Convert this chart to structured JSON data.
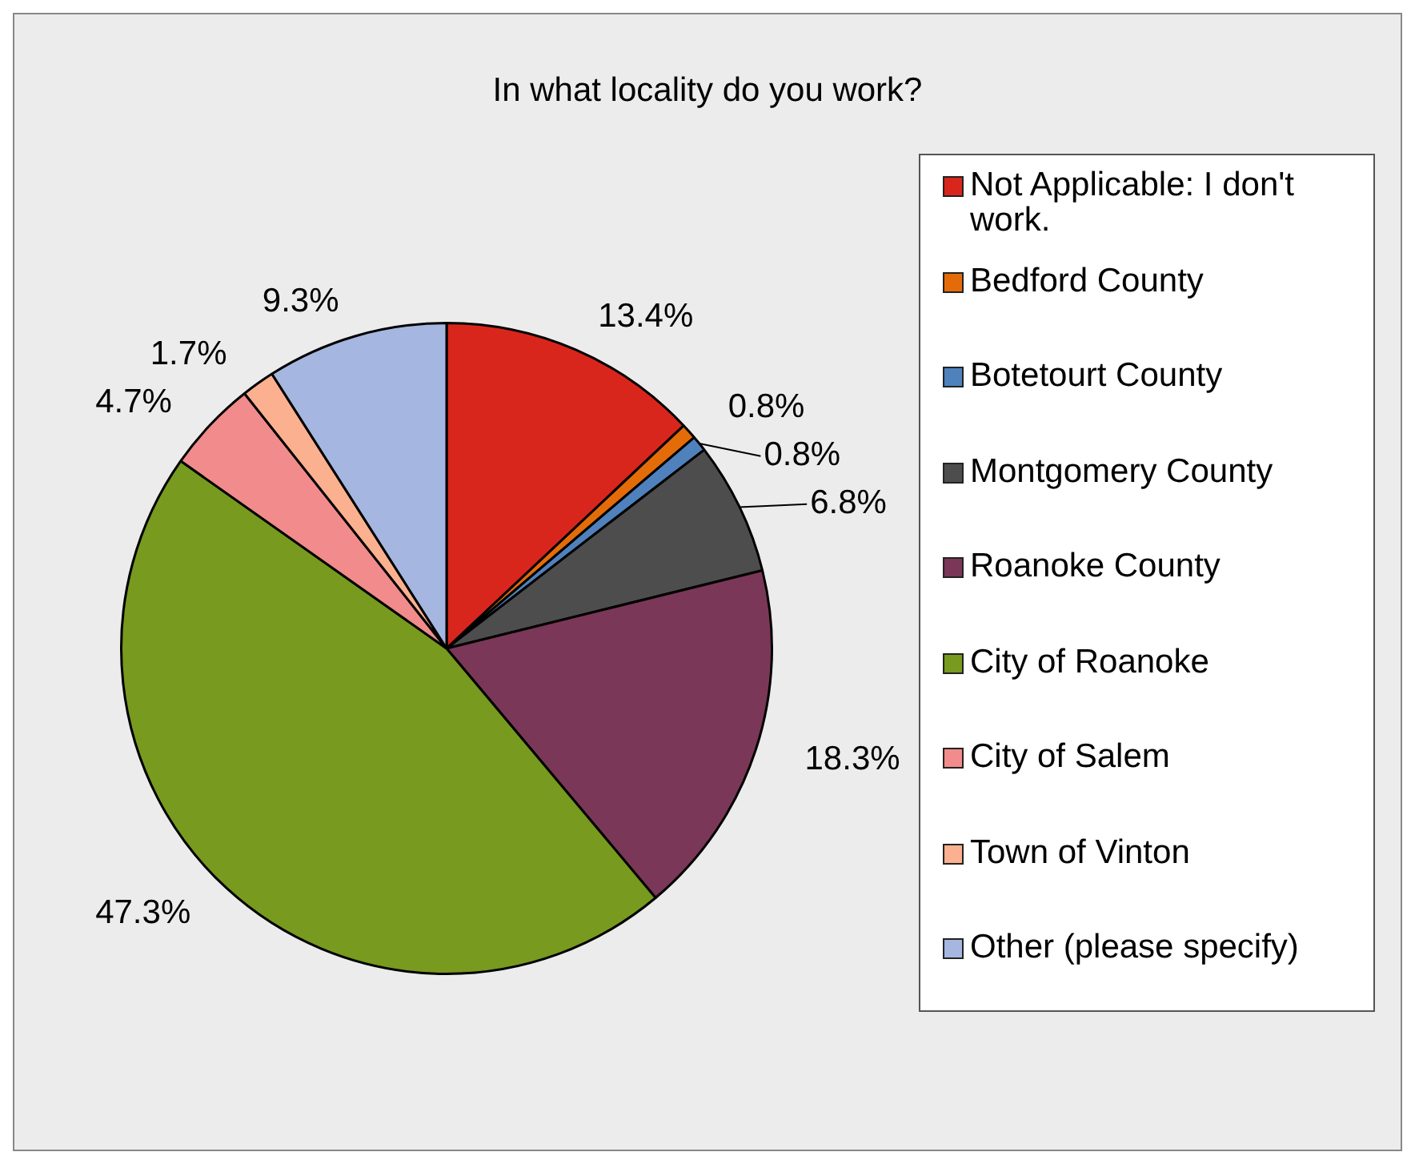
{
  "chart_data": {
    "type": "pie",
    "title": "In what locality do you work?",
    "categories": [
      "Not Applicable: I don't work.",
      "Bedford County",
      "Botetourt County",
      "Montgomery County",
      "Roanoke County",
      "City of Roanoke",
      "City of Salem",
      "Town of Vinton",
      "Other (please specify)"
    ],
    "values": [
      13.4,
      0.8,
      0.8,
      6.8,
      18.3,
      47.3,
      4.7,
      1.7,
      9.3
    ],
    "colors": [
      "#d9261c",
      "#e36c09",
      "#4f81bd",
      "#4d4d4d",
      "#7b3757",
      "#779a1f",
      "#f28b8b",
      "#fbb08f",
      "#a5b6e0"
    ],
    "value_labels": [
      "13.4%",
      "0.8%",
      "0.8%",
      "6.8%",
      "18.3%",
      "47.3%",
      "4.7%",
      "1.7%",
      "9.3%"
    ],
    "legend": "right"
  }
}
